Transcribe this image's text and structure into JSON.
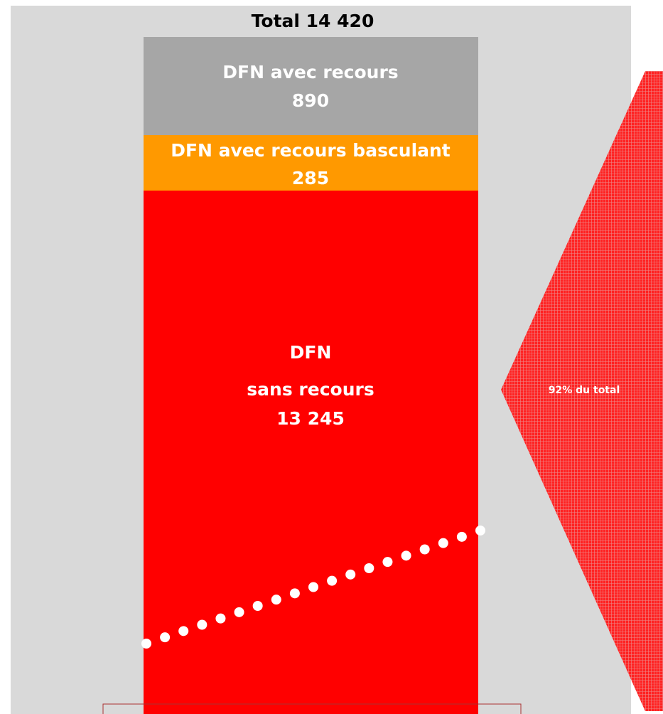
{
  "title": "Total 14 420",
  "segments": [
    {
      "lines": [
        "DFN avec recours",
        "890"
      ]
    },
    {
      "lines": [
        "DFN avec recours basculant",
        "285"
      ]
    },
    {
      "lines": [
        "DFN",
        "sans recours",
        "13 245"
      ]
    }
  ],
  "callout": "92% du total"
}
